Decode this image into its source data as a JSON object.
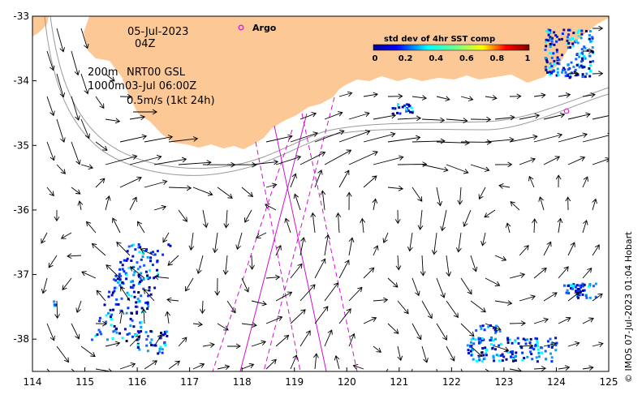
{
  "map": {
    "date": "05-Jul-2023",
    "time": "04Z",
    "depth_contours": "200m",
    "depth_contours_2": "1000m",
    "product": "NRT00 GSL",
    "product_time": "03-Jul 06:00Z",
    "scale_label": "0.5m/s (1kt 24h)",
    "argo_label": "Argo",
    "colorbar": {
      "title": "std dev of 4hr SST comp",
      "ticks": [
        "0",
        "0.2",
        "0.4",
        "0.6",
        "0.8",
        "1"
      ]
    },
    "x_ticks": [
      "114",
      "115",
      "116",
      "117",
      "118",
      "119",
      "120",
      "121",
      "122",
      "123",
      "124",
      "125"
    ],
    "y_ticks": [
      "-33",
      "-34",
      "-35",
      "-36",
      "-37",
      "-38"
    ],
    "credit": "© IMOS 07-Jul-2023 01:04 Hobart",
    "colors": {
      "land": "#fbc896",
      "argo": "#e020e0",
      "track": "#d010d0",
      "arrow": "#000000",
      "contour": "#9a9a9a"
    },
    "lon_range": [
      114,
      125
    ],
    "lat_range": [
      -38.5,
      -33
    ]
  }
}
